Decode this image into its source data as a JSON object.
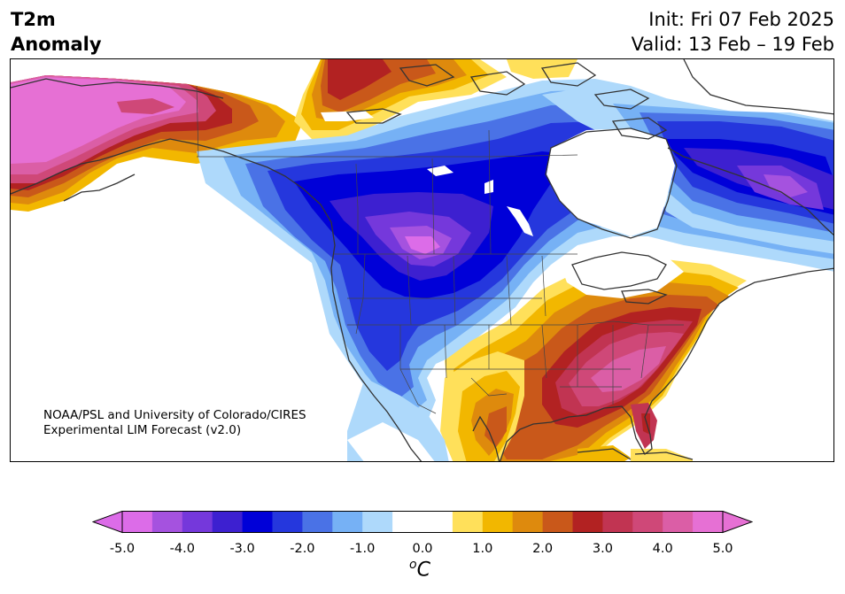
{
  "title": {
    "left_line1": "T2m",
    "left_line2": "Anomaly",
    "right_line1": "Init: Fri 07 Feb 2025",
    "right_line2": "Valid: 13 Feb – 19 Feb"
  },
  "credit": {
    "line1": "NOAA/PSL and University of Colorado/CIRES",
    "line2": "Experimental LIM Forecast (v2.0)"
  },
  "colorbar": {
    "unit_base": "C",
    "unit_sup": "o",
    "ticks": [
      "-5.0",
      "-4.0",
      "-3.0",
      "-2.0",
      "-1.0",
      "0.0",
      "1.0",
      "2.0",
      "3.0",
      "4.0",
      "5.0"
    ],
    "colors": [
      "#dc6ce8",
      "#a552df",
      "#7538db",
      "#3d20d0",
      "#0000d8",
      "#2537dd",
      "#4a72e6",
      "#76b1f5",
      "#aed9fb",
      "#ffffff",
      "#ffffff",
      "#ffe05a",
      "#f2b700",
      "#de8a0d",
      "#c9581a",
      "#b22222",
      "#c13452",
      "#cf4878",
      "#db5ea6",
      "#e670d4"
    ],
    "under_color": "#dc6ce8",
    "over_color": "#e670d4"
  },
  "map": {
    "region": "North America",
    "projection": "conic",
    "variable": "2-m temperature anomaly",
    "features": {
      "cold_core": "Northern Plains / Montana (< -4.0)",
      "warm_core": "Southeastern US (> 4.0)",
      "warm_alaska": "Western Alaska (> 4.0)",
      "cold_quebec": "Northern Quebec / Labrador (-3.0 to -4.0)"
    }
  }
}
